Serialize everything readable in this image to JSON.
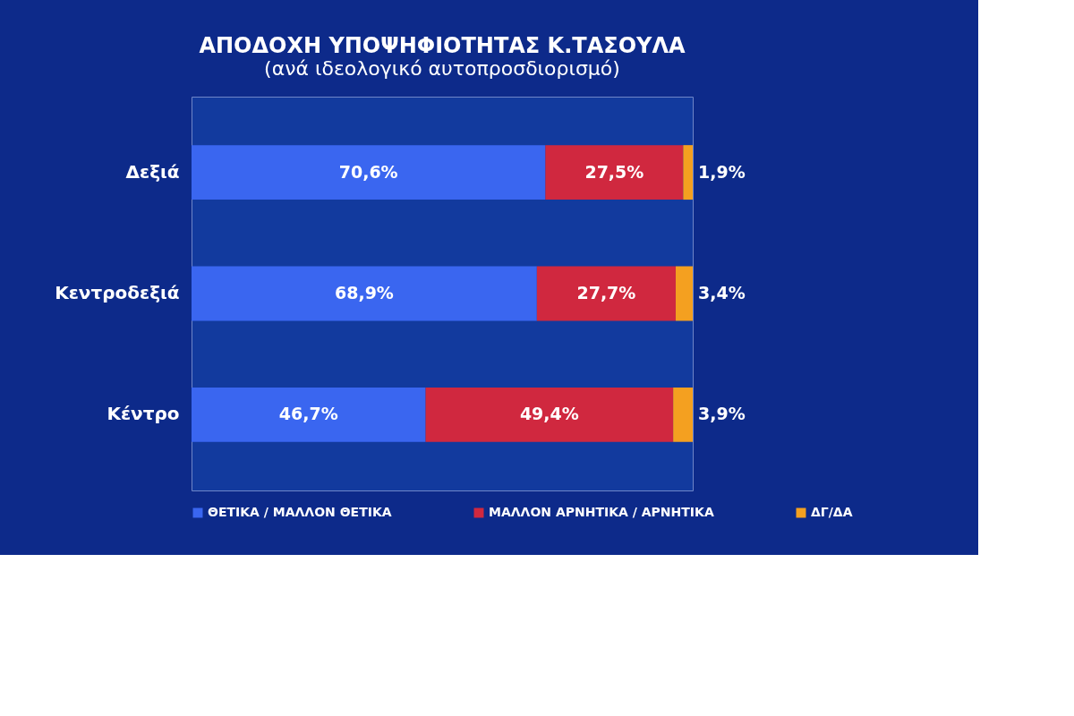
{
  "chart_data": {
    "type": "bar",
    "orientation": "horizontal",
    "stacked": true,
    "title": "ΑΠΟΔΟΧΗ ΥΠΟΨΗΦΙΟΤΗΤΑΣ Κ.ΤΑΣΟΥΛΑ",
    "subtitle": "(ανά ιδεολογικό αυτοπροσδιορισμό)",
    "categories": [
      "Δεξιά",
      "Κεντροδεξιά",
      "Κέντρο"
    ],
    "xlim": [
      0,
      100
    ],
    "tick_labels": "y",
    "grid": false,
    "legend": "bottom",
    "series": [
      {
        "name": "ΘΕΤΙΚΑ / ΜΑΛΛΟΝ ΘΕΤΙΚΑ",
        "color": "#3a66f0",
        "values": [
          70.6,
          68.9,
          46.7
        ],
        "value_labels": [
          "70,6%",
          "68,9%",
          "46,7%"
        ]
      },
      {
        "name": "ΜΑΛΛΟΝ ΑΡΝΗΤΙΚΑ / ΑΡΝΗΤΙΚΑ",
        "color": "#d0283f",
        "values": [
          27.5,
          27.7,
          49.4
        ],
        "value_labels": [
          "27,5%",
          "27,7%",
          "49,4%"
        ]
      },
      {
        "name": "ΔΓ/ΔΑ",
        "color": "#f4a020",
        "values": [
          1.9,
          3.4,
          3.9
        ],
        "value_labels": [
          "1,9%",
          "3,4%",
          "3,9%"
        ]
      }
    ]
  }
}
